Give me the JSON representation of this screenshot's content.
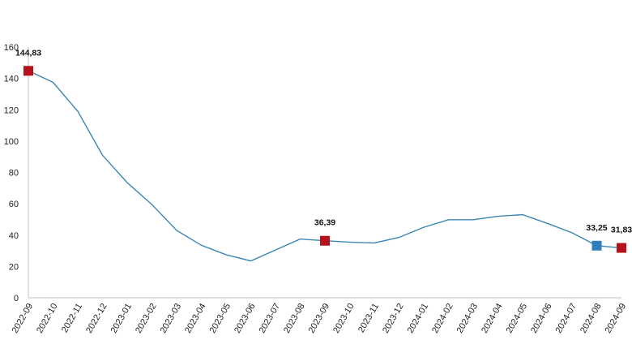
{
  "chart_data": {
    "type": "line",
    "title": "",
    "xlabel": "",
    "ylabel": "",
    "ylim": [
      0,
      160
    ],
    "y_ticks": [
      0,
      20,
      40,
      60,
      80,
      100,
      120,
      140,
      160
    ],
    "grid": false,
    "legend": "none",
    "categories": [
      "2022-09",
      "2022-10",
      "2022-11",
      "2022-12",
      "2023-01",
      "2023-02",
      "2023-03",
      "2023-04",
      "2023-05",
      "2023-06",
      "2023-07",
      "2023-08",
      "2023-09",
      "2023-10",
      "2023-11",
      "2023-12",
      "2024-01",
      "2024-02",
      "2024-03",
      "2024-04",
      "2024-05",
      "2024-06",
      "2024-07",
      "2024-08",
      "2024-09"
    ],
    "series": [
      {
        "name": "",
        "color": "#3a86b4",
        "values": [
          144.83,
          137.5,
          119,
          91,
          73.5,
          59.5,
          43,
          33.5,
          27.5,
          23.5,
          30.5,
          37.5,
          36.39,
          35.5,
          35.0,
          38.5,
          45,
          49.8,
          49.8,
          52,
          53,
          47.5,
          41.5,
          33.25,
          31.83
        ]
      }
    ],
    "annotations": [
      {
        "index": 0,
        "label": "144,83",
        "marker_color": "#b5121b"
      },
      {
        "index": 12,
        "label": "36,39",
        "marker_color": "#b5121b"
      },
      {
        "index": 23,
        "label": "33,25",
        "marker_color": "#2e7fba"
      },
      {
        "index": 24,
        "label": "31,83",
        "marker_color": "#b5121b"
      }
    ]
  }
}
